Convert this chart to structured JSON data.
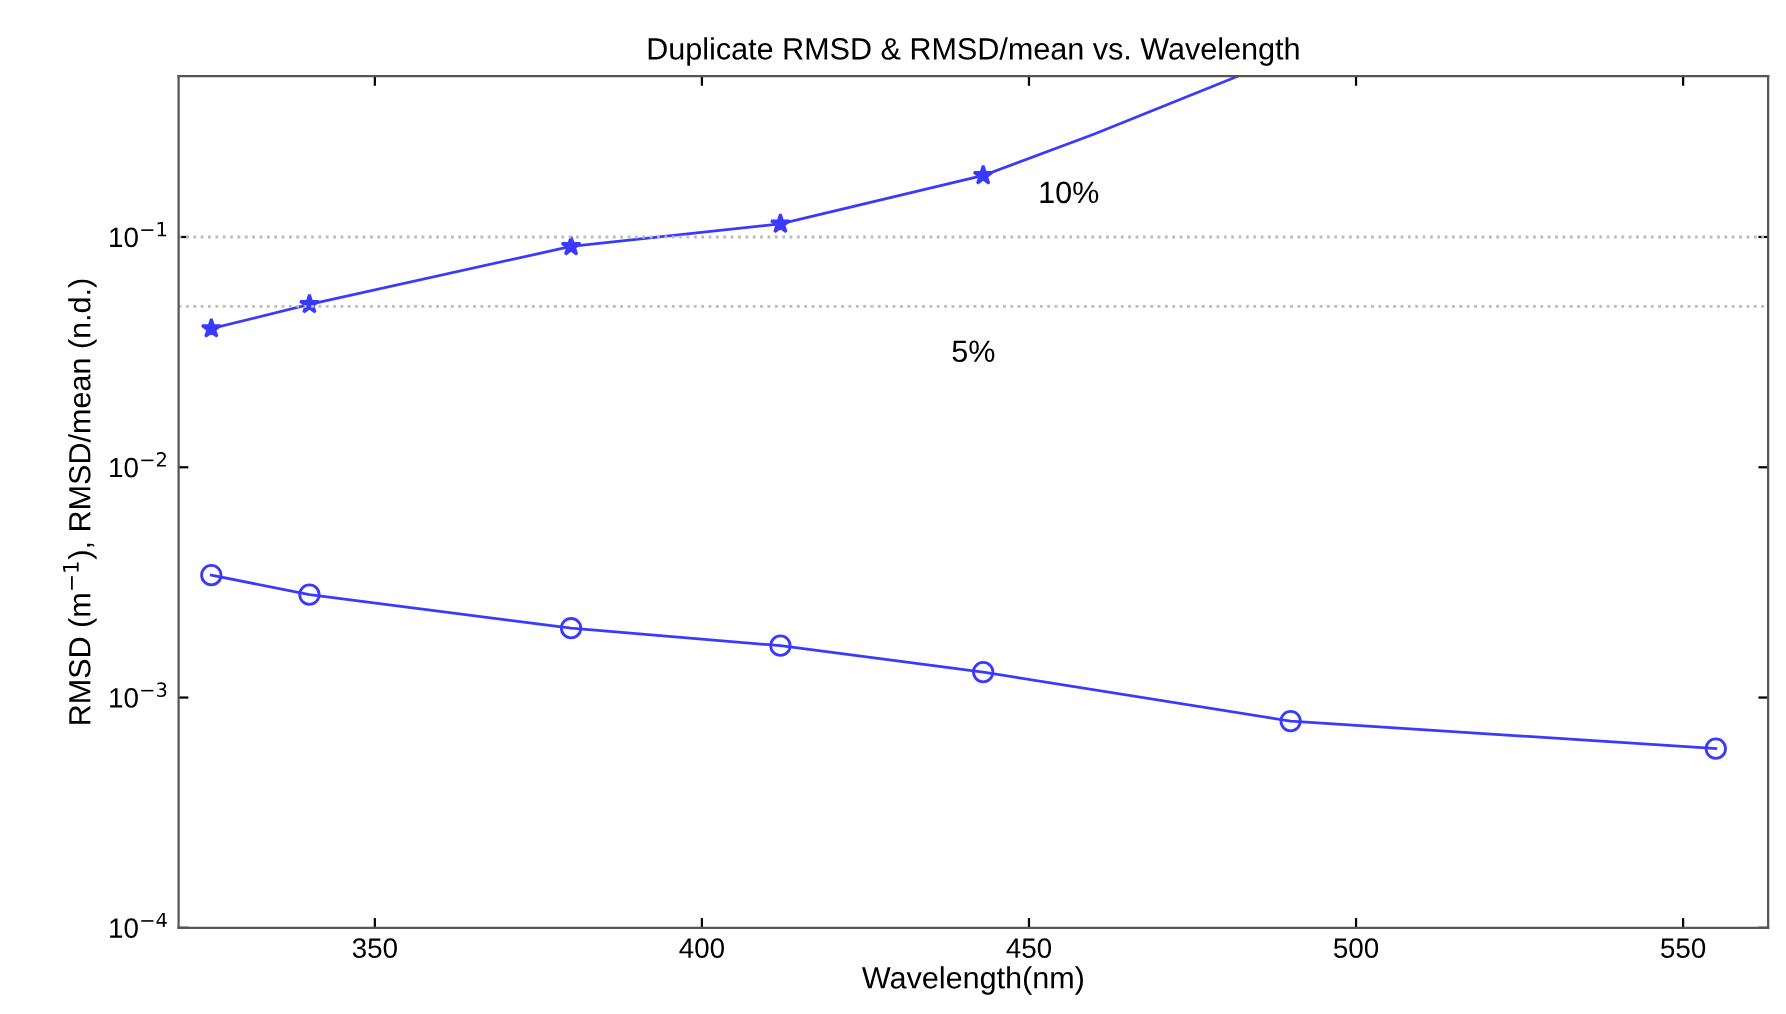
{
  "chart_data": {
    "type": "line",
    "title": "Duplicate RMSD & RMSD/mean vs. Wavelength",
    "xlabel": "Wavelength(nm)",
    "ylabel": "RMSD (m$^{−1}$), RMSD/mean (n.d.)",
    "log": "y",
    "grid": false,
    "legend": false,
    "xlim": [
      320,
      563
    ],
    "xticks": [
      350,
      400,
      450,
      500,
      550
    ],
    "ylim": [
      0.0001,
      0.5
    ],
    "yticks": [
      {
        "value": 0.0001,
        "label": "10$^{−4}$"
      },
      {
        "value": 0.001,
        "label": "10$^{−3}$"
      },
      {
        "value": 0.01,
        "label": "10$^{−2}$"
      },
      {
        "value": 0.1,
        "label": "10$^{−1}$"
      }
    ],
    "series": [
      {
        "color": "#3a3aff",
        "marker": "star",
        "x": [
          325,
          340,
          380,
          412,
          443
        ],
        "values": [
          0.04,
          0.051,
          0.091,
          0.114,
          0.185
        ]
      },
      {
        "color": "#3a3aff",
        "marker": "none",
        "x": [
          443,
          460,
          482
        ],
        "values": [
          0.185,
          0.28,
          0.5
        ]
      },
      {
        "color": "#3a3aff",
        "marker": "circle",
        "x": [
          325,
          340,
          380,
          412,
          443,
          490,
          555
        ],
        "values": [
          0.0034,
          0.0028,
          0.002,
          0.00168,
          0.00129,
          0.00079,
          0.0006
        ]
      }
    ],
    "ref_lines": [
      {
        "axis": "y",
        "value": 0.1,
        "label": "10%",
        "color": "#bbbbbb",
        "line_style": "dotted"
      },
      {
        "axis": "y",
        "value": 0.05,
        "label": "5%",
        "color": "#bbbbbb",
        "line_style": "dotted"
      }
    ]
  }
}
